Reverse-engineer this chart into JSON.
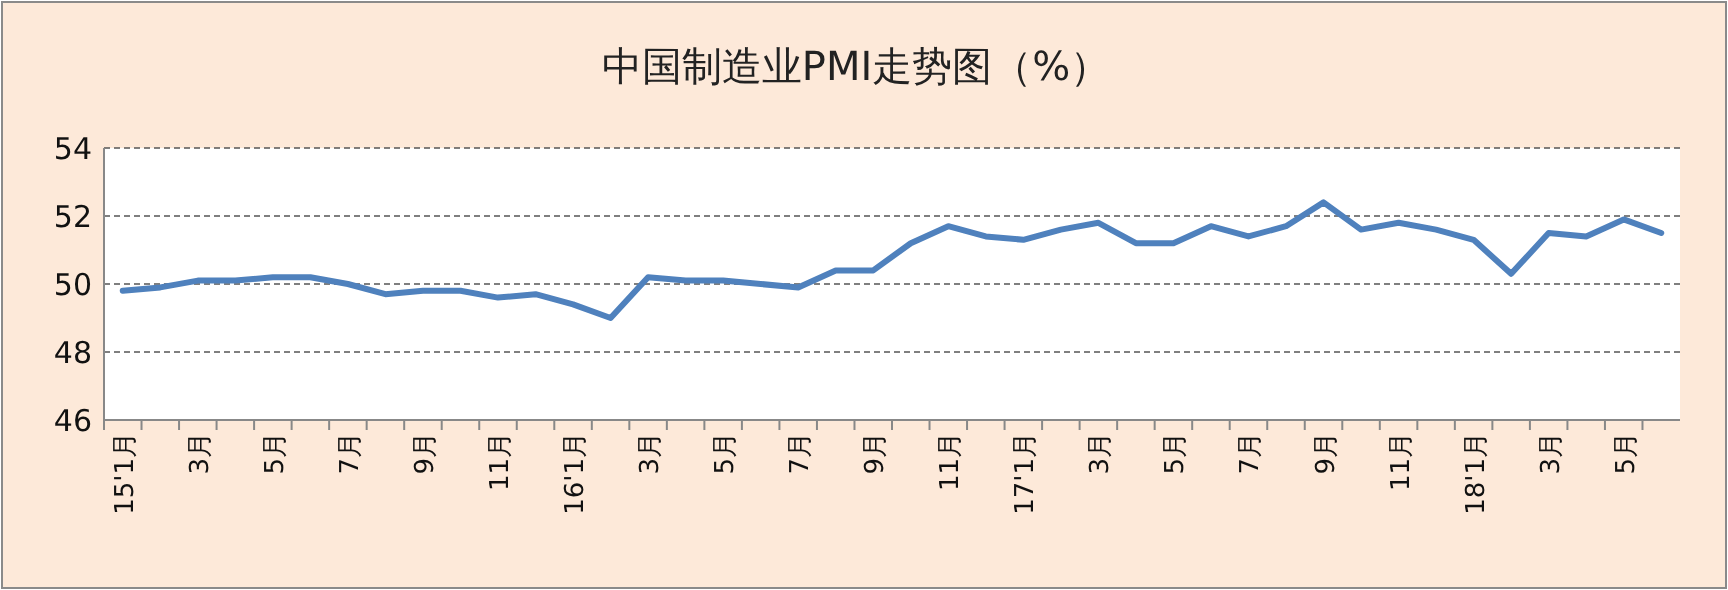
{
  "chart_data": {
    "type": "line",
    "title": "中国制造业PMI走势图（%）",
    "categories": [
      "15'1月",
      null,
      "3月",
      null,
      "5月",
      null,
      "7月",
      null,
      "9月",
      null,
      "11月",
      null,
      "16'1月",
      null,
      "3月",
      null,
      "5月",
      null,
      "7月",
      null,
      "9月",
      null,
      "11月",
      null,
      "17'1月",
      null,
      "3月",
      null,
      "5月",
      null,
      "7月",
      null,
      "9月",
      null,
      "11月",
      null,
      "18'1月",
      null,
      "3月",
      null,
      "5月",
      null
    ],
    "series": [
      {
        "color": "#4f81bd",
        "values": [
          49.8,
          49.9,
          50.1,
          50.1,
          50.2,
          50.2,
          50.0,
          49.7,
          49.8,
          49.8,
          49.6,
          49.7,
          49.4,
          49.0,
          50.2,
          50.1,
          50.1,
          50.0,
          49.9,
          50.4,
          50.4,
          51.2,
          51.7,
          51.4,
          51.3,
          51.6,
          51.8,
          51.2,
          51.2,
          51.7,
          51.4,
          51.7,
          52.4,
          51.6,
          51.8,
          51.6,
          51.3,
          50.3,
          51.5,
          51.4,
          51.9,
          51.5
        ]
      }
    ],
    "ylim": [
      46,
      54
    ],
    "yticks": [
      46,
      48,
      50,
      52,
      54
    ],
    "grid": "y",
    "marker": "none",
    "line_style": "solid"
  }
}
